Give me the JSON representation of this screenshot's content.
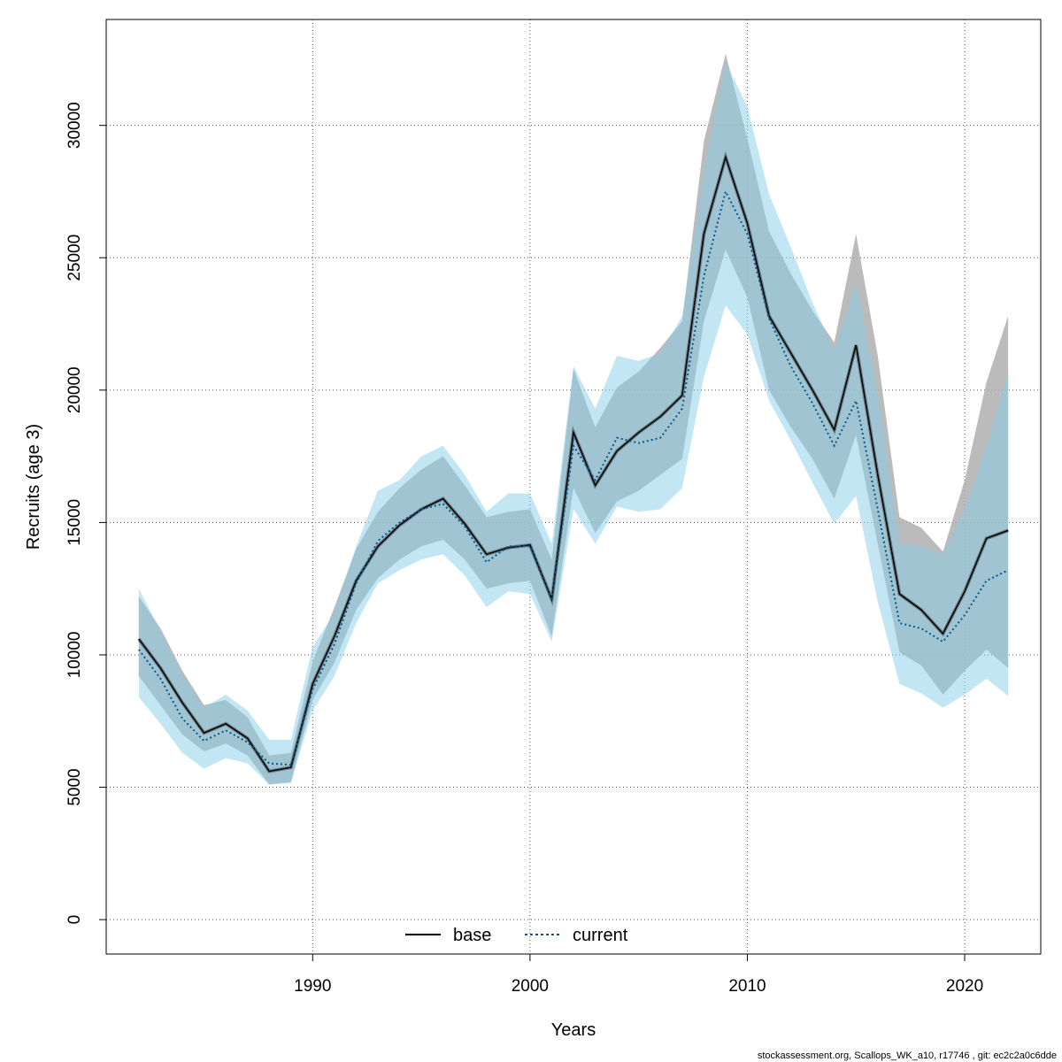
{
  "chart_data": {
    "type": "area",
    "xlabel": "Years",
    "ylabel": "Recruits (age 3)",
    "xlim": [
      1980.5,
      2023.5
    ],
    "ylim": [
      -1300,
      34000
    ],
    "x_ticks": [
      1990,
      2000,
      2010,
      2020
    ],
    "y_ticks": [
      0,
      5000,
      10000,
      15000,
      20000,
      25000,
      30000
    ],
    "grid": true,
    "legend_position": "bottom",
    "x": [
      1982,
      1983,
      1984,
      1985,
      1986,
      1987,
      1988,
      1989,
      1990,
      1991,
      1992,
      1993,
      1994,
      1995,
      1996,
      1997,
      1998,
      1999,
      2000,
      2001,
      2002,
      2003,
      2004,
      2005,
      2006,
      2007,
      2008,
      2009,
      2010,
      2011,
      2012,
      2013,
      2014,
      2015,
      2016,
      2017,
      2018,
      2019,
      2020,
      2021,
      2022
    ],
    "series": [
      {
        "name": "base",
        "color": "#000000",
        "line_style": "solid",
        "band_color": "#aaaaaa",
        "values": [
          10600,
          9500,
          8200,
          7050,
          7400,
          6850,
          5600,
          5750,
          8900,
          10700,
          12800,
          14100,
          14900,
          15500,
          15900,
          14950,
          13800,
          14050,
          14150,
          12100,
          18400,
          16400,
          17700,
          18400,
          19000,
          19800,
          25900,
          28800,
          26300,
          22800,
          21400,
          20000,
          18500,
          21700,
          16800,
          12300,
          11700,
          10800,
          12400,
          14400,
          14700
        ],
        "lower": [
          9200,
          8100,
          7000,
          6350,
          6650,
          6200,
          5100,
          5200,
          8300,
          9700,
          11700,
          12900,
          13600,
          14100,
          14350,
          13600,
          12500,
          12700,
          12800,
          10700,
          16300,
          14600,
          15800,
          16200,
          16800,
          17400,
          22600,
          25300,
          23500,
          20000,
          18600,
          17400,
          15900,
          18300,
          14200,
          10100,
          9600,
          8500,
          9400,
          10200,
          9500
        ],
        "upper": [
          12200,
          11000,
          9400,
          8100,
          8300,
          7650,
          6200,
          6300,
          9750,
          11800,
          14000,
          15400,
          16300,
          17000,
          17500,
          16400,
          15200,
          15400,
          15500,
          13600,
          20800,
          18600,
          20100,
          20700,
          21600,
          22600,
          29400,
          32700,
          29500,
          26000,
          24400,
          23000,
          21800,
          25900,
          21300,
          15200,
          14800,
          13900,
          16600,
          20300,
          22800
        ]
      },
      {
        "name": "current",
        "color": "#045a8d",
        "line_style": "dotted",
        "band_color": "#87ceeb",
        "values": [
          10200,
          9100,
          7600,
          6750,
          7150,
          6700,
          5900,
          5850,
          8700,
          10400,
          12700,
          14300,
          15000,
          15500,
          15700,
          14850,
          13500,
          14100,
          14100,
          12050,
          17900,
          16600,
          18200,
          18000,
          18200,
          19300,
          24300,
          27500,
          25900,
          22700,
          20900,
          19500,
          17900,
          19600,
          15500,
          11200,
          11000,
          10500,
          11500,
          12800,
          13200
        ],
        "lower": [
          8400,
          7400,
          6300,
          5700,
          6100,
          5900,
          5100,
          5150,
          7900,
          9200,
          11200,
          12700,
          13200,
          13600,
          13800,
          13000,
          11800,
          12400,
          12300,
          10500,
          15500,
          14200,
          15600,
          15400,
          15500,
          16300,
          20500,
          23200,
          22100,
          19600,
          18100,
          16500,
          14950,
          16000,
          12000,
          8900,
          8550,
          8000,
          8500,
          9100,
          8450
        ],
        "upper": [
          12500,
          10900,
          9300,
          8000,
          8500,
          7900,
          6800,
          6800,
          10300,
          11600,
          14100,
          16200,
          16600,
          17500,
          17900,
          16800,
          15400,
          16100,
          16100,
          14200,
          20900,
          19300,
          21300,
          21100,
          21400,
          22800,
          28300,
          32400,
          30700,
          27400,
          25400,
          23300,
          21500,
          24100,
          19900,
          14200,
          14100,
          13800,
          15500,
          17900,
          20600
        ]
      }
    ]
  },
  "footer": "stockassessment.org, Scallops_WK_a10, r17746 , git: ec2c2a0c6dde"
}
